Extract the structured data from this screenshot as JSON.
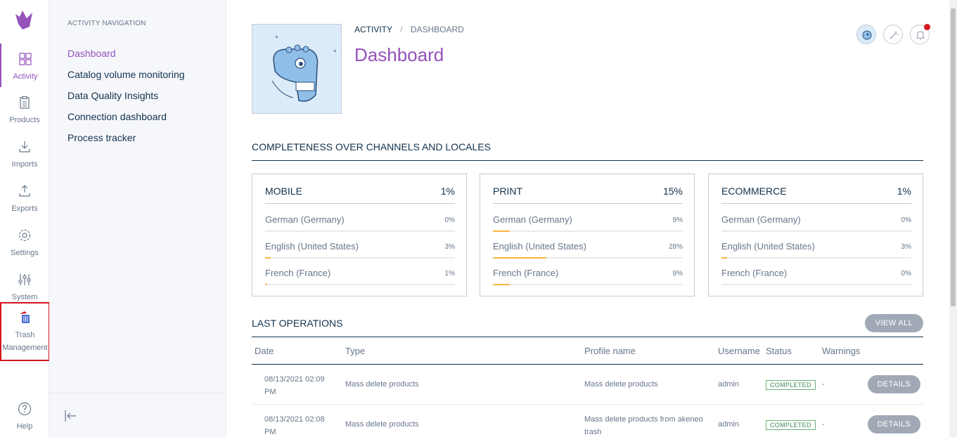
{
  "mainnav": {
    "items": [
      {
        "label": "Activity",
        "icon": "dashboard-icon"
      },
      {
        "label": "Products",
        "icon": "clipboard-icon"
      },
      {
        "label": "Imports",
        "icon": "import-icon"
      },
      {
        "label": "Exports",
        "icon": "export-icon"
      },
      {
        "label": "Settings",
        "icon": "gear-icon"
      },
      {
        "label": "System",
        "icon": "sliders-icon"
      },
      {
        "label_line1": "Trash",
        "label_line2": "Management",
        "icon": "trash-icon"
      },
      {
        "label": "Help",
        "icon": "help-icon"
      }
    ]
  },
  "subnav": {
    "title": "ACTIVITY NAVIGATION",
    "links": [
      "Dashboard",
      "Catalog volume monitoring",
      "Data Quality Insights",
      "Connection dashboard",
      "Process tracker"
    ]
  },
  "header": {
    "breadcrumb": [
      "ACTIVITY",
      "/",
      "DASHBOARD"
    ],
    "title": "Dashboard"
  },
  "completeness": {
    "title": "COMPLETENESS OVER CHANNELS AND LOCALES",
    "channels": [
      {
        "name": "MOBILE",
        "total": "1%",
        "locales": [
          {
            "name": "German (Germany)",
            "value": "0%",
            "fraction": 0
          },
          {
            "name": "English (United States)",
            "value": "3%",
            "fraction": 0.03
          },
          {
            "name": "French (France)",
            "value": "1%",
            "fraction": 0.01
          }
        ]
      },
      {
        "name": "PRINT",
        "total": "15%",
        "locales": [
          {
            "name": "German (Germany)",
            "value": "9%",
            "fraction": 0.09
          },
          {
            "name": "English (United States)",
            "value": "28%",
            "fraction": 0.28
          },
          {
            "name": "French (France)",
            "value": "9%",
            "fraction": 0.09
          }
        ]
      },
      {
        "name": "ECOMMERCE",
        "total": "1%",
        "locales": [
          {
            "name": "German (Germany)",
            "value": "0%",
            "fraction": 0
          },
          {
            "name": "English (United States)",
            "value": "3%",
            "fraction": 0.03
          },
          {
            "name": "French (France)",
            "value": "0%",
            "fraction": 0
          }
        ]
      }
    ]
  },
  "operations": {
    "title": "LAST OPERATIONS",
    "view_all": "VIEW ALL",
    "columns": [
      "Date",
      "Type",
      "Profile name",
      "Username",
      "Status",
      "Warnings"
    ],
    "rows": [
      {
        "date_line1": "08/13/2021 02:09",
        "date_line2": "PM",
        "type": "Mass delete products",
        "profile_line1": "Mass delete products",
        "profile_line2": "",
        "username": "admin",
        "status": "COMPLETED",
        "warnings": "-",
        "action": "DETAILS"
      },
      {
        "date_line1": "08/13/2021 02:08",
        "date_line2": "PM",
        "type": "Mass delete products",
        "profile_line1": "Mass delete products from akeneo",
        "profile_line2": "trash",
        "username": "admin",
        "status": "COMPLETED",
        "warnings": "-",
        "action": "DETAILS"
      }
    ]
  },
  "colors": {
    "accent": "#9452ba",
    "bar": "#f9b53f",
    "status": "#67b373",
    "alert": "#d4161e"
  }
}
